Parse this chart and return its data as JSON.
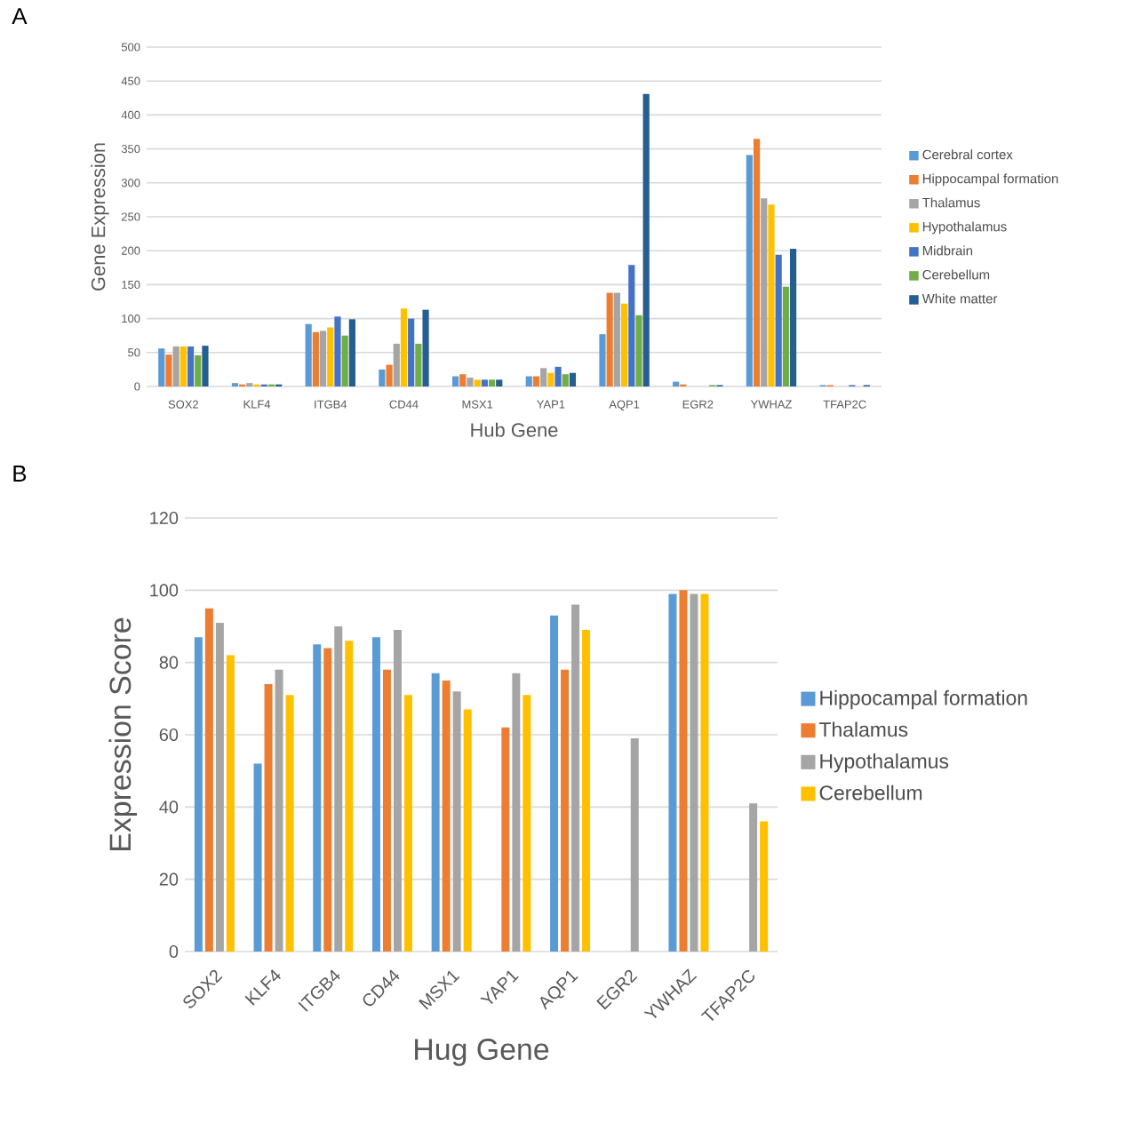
{
  "chart_data": [
    {
      "type": "bar",
      "title": "A",
      "xlabel": "Hub Gene",
      "ylabel": "Gene Expression",
      "categories": [
        "SOX2",
        "KLF4",
        "ITGB4",
        "CD44",
        "MSX1",
        "YAP1",
        "AQP1",
        "EGR2",
        "YWHAZ",
        "TFAP2C"
      ],
      "ylim": [
        0,
        500
      ],
      "yticks": [
        0,
        50,
        100,
        150,
        200,
        250,
        300,
        350,
        400,
        450,
        500
      ],
      "grid": "y",
      "legend": "right",
      "series": [
        {
          "name": "Cerebral cortex",
          "color": "#5b9bd5",
          "values": [
            56,
            5,
            92,
            25,
            15,
            15,
            77,
            7,
            341,
            2
          ]
        },
        {
          "name": "Hippocampal formation",
          "color": "#ed7d31",
          "values": [
            47,
            3,
            80,
            32,
            18,
            15,
            138,
            3,
            365,
            2
          ]
        },
        {
          "name": "Thalamus",
          "color": "#a5a5a5",
          "values": [
            59,
            5,
            82,
            63,
            13,
            27,
            138,
            0,
            277,
            0
          ]
        },
        {
          "name": "Hypothalamus",
          "color": "#ffc000",
          "values": [
            59,
            3,
            87,
            115,
            10,
            20,
            122,
            0,
            268,
            0
          ]
        },
        {
          "name": "Midbrain",
          "color": "#4472c4",
          "values": [
            59,
            3,
            103,
            100,
            10,
            29,
            179,
            0,
            194,
            2
          ]
        },
        {
          "name": "Cerebellum",
          "color": "#70ad47",
          "values": [
            46,
            3,
            75,
            63,
            10,
            18,
            105,
            2,
            147,
            0
          ]
        },
        {
          "name": "White matter",
          "color": "#255e91",
          "values": [
            60,
            3,
            99,
            113,
            10,
            20,
            431,
            2,
            203,
            2
          ]
        }
      ]
    },
    {
      "type": "bar",
      "title": "B",
      "xlabel": "Hug Gene",
      "ylabel": "Expression Score",
      "categories": [
        "SOX2",
        "KLF4",
        "ITGB4",
        "CD44",
        "MSX1",
        "YAP1",
        "AQP1",
        "EGR2",
        "YWHAZ",
        "TFAP2C"
      ],
      "ylim": [
        0,
        120
      ],
      "yticks": [
        0,
        20,
        40,
        60,
        80,
        100,
        120
      ],
      "grid": "y",
      "legend": "right",
      "series": [
        {
          "name": "Hippocampal formation",
          "color": "#5b9bd5",
          "values": [
            87,
            52,
            85,
            87,
            77,
            null,
            93,
            null,
            99,
            null
          ]
        },
        {
          "name": "Thalamus",
          "color": "#ed7d31",
          "values": [
            95,
            74,
            84,
            78,
            75,
            62,
            78,
            null,
            100,
            null
          ]
        },
        {
          "name": "Hypothalamus",
          "color": "#a5a5a5",
          "values": [
            91,
            78,
            90,
            89,
            72,
            77,
            96,
            59,
            99,
            41
          ]
        },
        {
          "name": "Cerebellum",
          "color": "#ffc000",
          "values": [
            82,
            71,
            86,
            71,
            67,
            71,
            89,
            null,
            99,
            36
          ]
        }
      ]
    }
  ]
}
